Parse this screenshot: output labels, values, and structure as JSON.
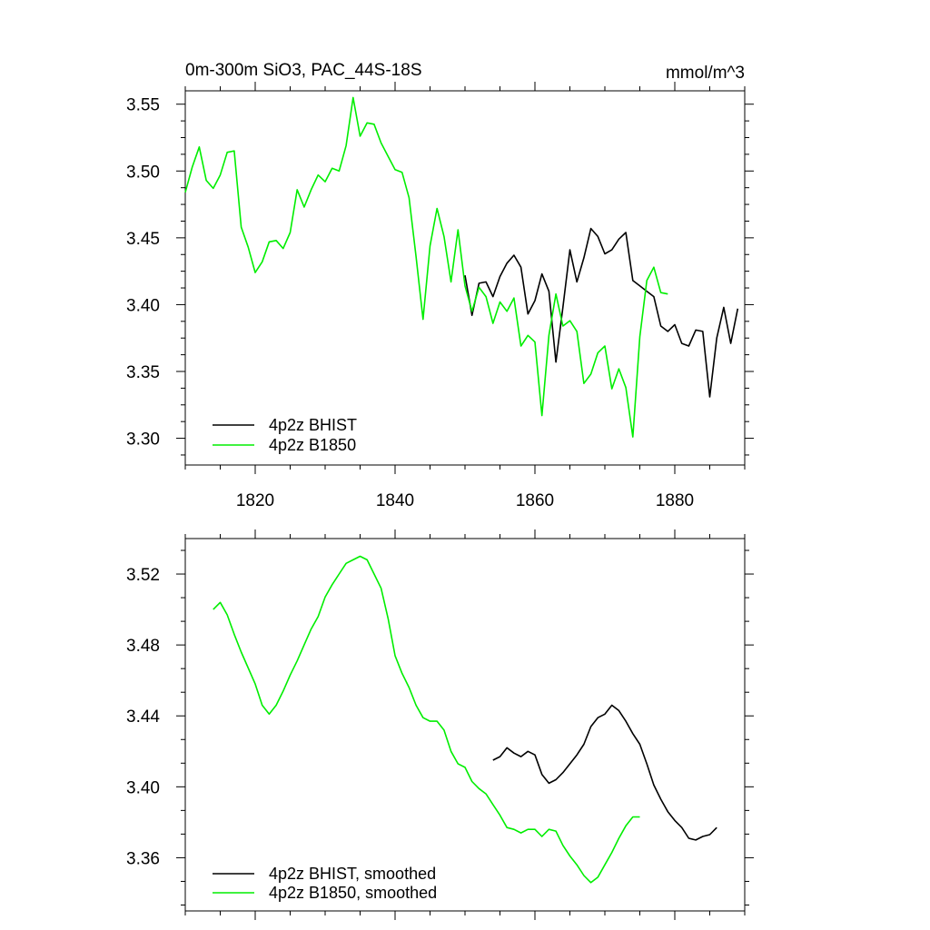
{
  "header": {
    "left_title": "0m-300m SiO3, PAC_44S-18S",
    "right_title": "mmol/m^3"
  },
  "colors": {
    "bhist": "#000000",
    "b1850": "#00ee00"
  },
  "chart_data": [
    {
      "type": "line",
      "xlim": [
        1810,
        1890
      ],
      "ylim": [
        3.28,
        3.56
      ],
      "x_ticks": [
        1820,
        1840,
        1860,
        1880
      ],
      "x_tick_labels": [
        "1820",
        "1840",
        "1860",
        "1880"
      ],
      "y_ticks": [
        3.3,
        3.35,
        3.4,
        3.45,
        3.5,
        3.55
      ],
      "y_tick_labels": [
        "3.30",
        "3.35",
        "3.40",
        "3.45",
        "3.50",
        "3.55"
      ],
      "legend_position": "bottom-left",
      "series": [
        {
          "name": "4p2z BHIST",
          "color": "#000000",
          "x": [
            1850,
            1851,
            1852,
            1853,
            1854,
            1855,
            1856,
            1857,
            1858,
            1859,
            1860,
            1861,
            1862,
            1863,
            1864,
            1865,
            1866,
            1867,
            1868,
            1869,
            1870,
            1871,
            1872,
            1873,
            1874,
            1875,
            1876,
            1877,
            1878,
            1879,
            1880,
            1881,
            1882,
            1883,
            1884,
            1885,
            1886,
            1887,
            1888,
            1889
          ],
          "values": [
            3.422,
            3.392,
            3.416,
            3.417,
            3.406,
            3.421,
            3.431,
            3.437,
            3.428,
            3.393,
            3.403,
            3.423,
            3.41,
            3.357,
            3.398,
            3.441,
            3.417,
            3.435,
            3.457,
            3.451,
            3.438,
            3.441,
            3.449,
            3.454,
            3.418,
            3.414,
            3.41,
            3.406,
            3.384,
            3.38,
            3.385,
            3.371,
            3.369,
            3.381,
            3.38,
            3.331,
            3.375,
            3.398,
            3.371,
            3.397
          ]
        },
        {
          "name": "4p2z B1850",
          "color": "#00ee00",
          "x": [
            1810,
            1811,
            1812,
            1813,
            1814,
            1815,
            1816,
            1817,
            1818,
            1819,
            1820,
            1821,
            1822,
            1823,
            1824,
            1825,
            1826,
            1827,
            1828,
            1829,
            1830,
            1831,
            1832,
            1833,
            1834,
            1835,
            1836,
            1837,
            1838,
            1839,
            1840,
            1841,
            1842,
            1843,
            1844,
            1845,
            1846,
            1847,
            1848,
            1849,
            1850,
            1851,
            1852,
            1853,
            1854,
            1855,
            1856,
            1857,
            1858,
            1859,
            1860,
            1861,
            1862,
            1863,
            1864,
            1865,
            1866,
            1867,
            1868,
            1869,
            1870,
            1871,
            1872,
            1873,
            1874,
            1875,
            1876,
            1877,
            1878,
            1879
          ],
          "values": [
            3.484,
            3.503,
            3.518,
            3.493,
            3.487,
            3.497,
            3.514,
            3.515,
            3.458,
            3.443,
            3.424,
            3.432,
            3.447,
            3.448,
            3.442,
            3.454,
            3.486,
            3.473,
            3.486,
            3.497,
            3.492,
            3.502,
            3.5,
            3.519,
            3.555,
            3.526,
            3.536,
            3.535,
            3.521,
            3.511,
            3.501,
            3.499,
            3.48,
            3.436,
            3.389,
            3.444,
            3.472,
            3.451,
            3.417,
            3.456,
            3.414,
            3.395,
            3.413,
            3.406,
            3.386,
            3.402,
            3.395,
            3.405,
            3.369,
            3.377,
            3.372,
            3.317,
            3.377,
            3.408,
            3.384,
            3.388,
            3.38,
            3.341,
            3.348,
            3.364,
            3.369,
            3.337,
            3.352,
            3.338,
            3.301,
            3.376,
            3.418,
            3.428,
            3.409,
            3.408
          ]
        }
      ]
    },
    {
      "type": "line",
      "xlim": [
        1810,
        1890
      ],
      "ylim": [
        3.33,
        3.54
      ],
      "x_ticks": [
        1820,
        1840,
        1860,
        1880
      ],
      "y_ticks": [
        3.36,
        3.4,
        3.44,
        3.48,
        3.52
      ],
      "y_tick_labels": [
        "3.36",
        "3.40",
        "3.44",
        "3.48",
        "3.52"
      ],
      "legend_position": "bottom-left",
      "series": [
        {
          "name": "4p2z BHIST, smoothed",
          "color": "#000000",
          "x": [
            1854,
            1855,
            1856,
            1857,
            1858,
            1859,
            1860,
            1861,
            1862,
            1863,
            1864,
            1865,
            1866,
            1867,
            1868,
            1869,
            1870,
            1871,
            1872,
            1873,
            1874,
            1875,
            1876,
            1877,
            1878,
            1879,
            1880,
            1881,
            1882,
            1883,
            1884,
            1885,
            1886
          ],
          "values": [
            3.415,
            3.417,
            3.422,
            3.419,
            3.417,
            3.42,
            3.418,
            3.407,
            3.402,
            3.404,
            3.408,
            3.413,
            3.418,
            3.424,
            3.434,
            3.439,
            3.441,
            3.446,
            3.443,
            3.437,
            3.43,
            3.424,
            3.413,
            3.401,
            3.393,
            3.386,
            3.381,
            3.377,
            3.371,
            3.37,
            3.372,
            3.373,
            3.377
          ]
        },
        {
          "name": "4p2z B1850, smoothed",
          "color": "#00ee00",
          "x": [
            1814,
            1815,
            1816,
            1817,
            1818,
            1819,
            1820,
            1821,
            1822,
            1823,
            1824,
            1825,
            1826,
            1827,
            1828,
            1829,
            1830,
            1831,
            1832,
            1833,
            1834,
            1835,
            1836,
            1837,
            1838,
            1839,
            1840,
            1841,
            1842,
            1843,
            1844,
            1845,
            1846,
            1847,
            1848,
            1849,
            1850,
            1851,
            1852,
            1853,
            1854,
            1855,
            1856,
            1857,
            1858,
            1859,
            1860,
            1861,
            1862,
            1863,
            1864,
            1865,
            1866,
            1867,
            1868,
            1869,
            1870,
            1871,
            1872,
            1873,
            1874,
            1875
          ],
          "values": [
            3.5,
            3.504,
            3.497,
            3.486,
            3.476,
            3.467,
            3.458,
            3.446,
            3.441,
            3.446,
            3.454,
            3.463,
            3.471,
            3.48,
            3.489,
            3.496,
            3.507,
            3.514,
            3.52,
            3.526,
            3.528,
            3.53,
            3.528,
            3.52,
            3.512,
            3.495,
            3.474,
            3.464,
            3.456,
            3.446,
            3.439,
            3.437,
            3.437,
            3.432,
            3.42,
            3.413,
            3.411,
            3.403,
            3.399,
            3.396,
            3.39,
            3.384,
            3.377,
            3.376,
            3.374,
            3.376,
            3.376,
            3.372,
            3.376,
            3.375,
            3.367,
            3.361,
            3.356,
            3.35,
            3.346,
            3.349,
            3.356,
            3.363,
            3.371,
            3.378,
            3.383,
            3.383
          ]
        }
      ]
    }
  ]
}
